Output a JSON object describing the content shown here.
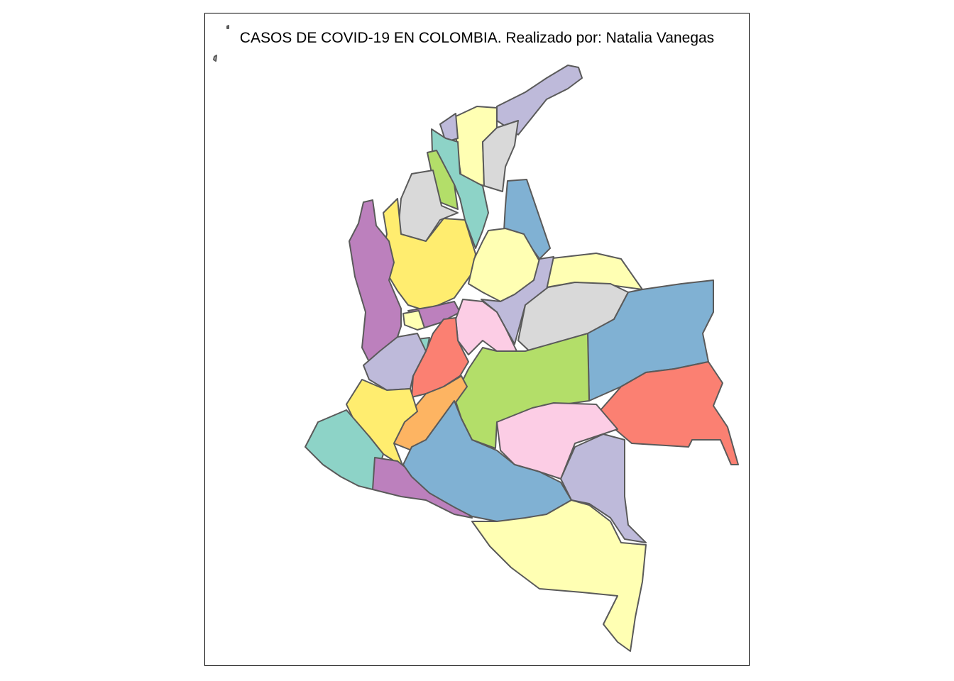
{
  "map": {
    "title": "CASOS DE COVID-19 EN COLOMBIA. Realizado por: Natalia Vanegas",
    "border_color": "#5a5a5a",
    "palette": [
      "#8DD3C7",
      "#FFFFB3",
      "#BEBADA",
      "#FB8072",
      "#80B1D3",
      "#FDB462",
      "#B3DE69",
      "#FCCDE5",
      "#D9D9D9",
      "#BC80BD",
      "#FFED6F"
    ]
  }
}
